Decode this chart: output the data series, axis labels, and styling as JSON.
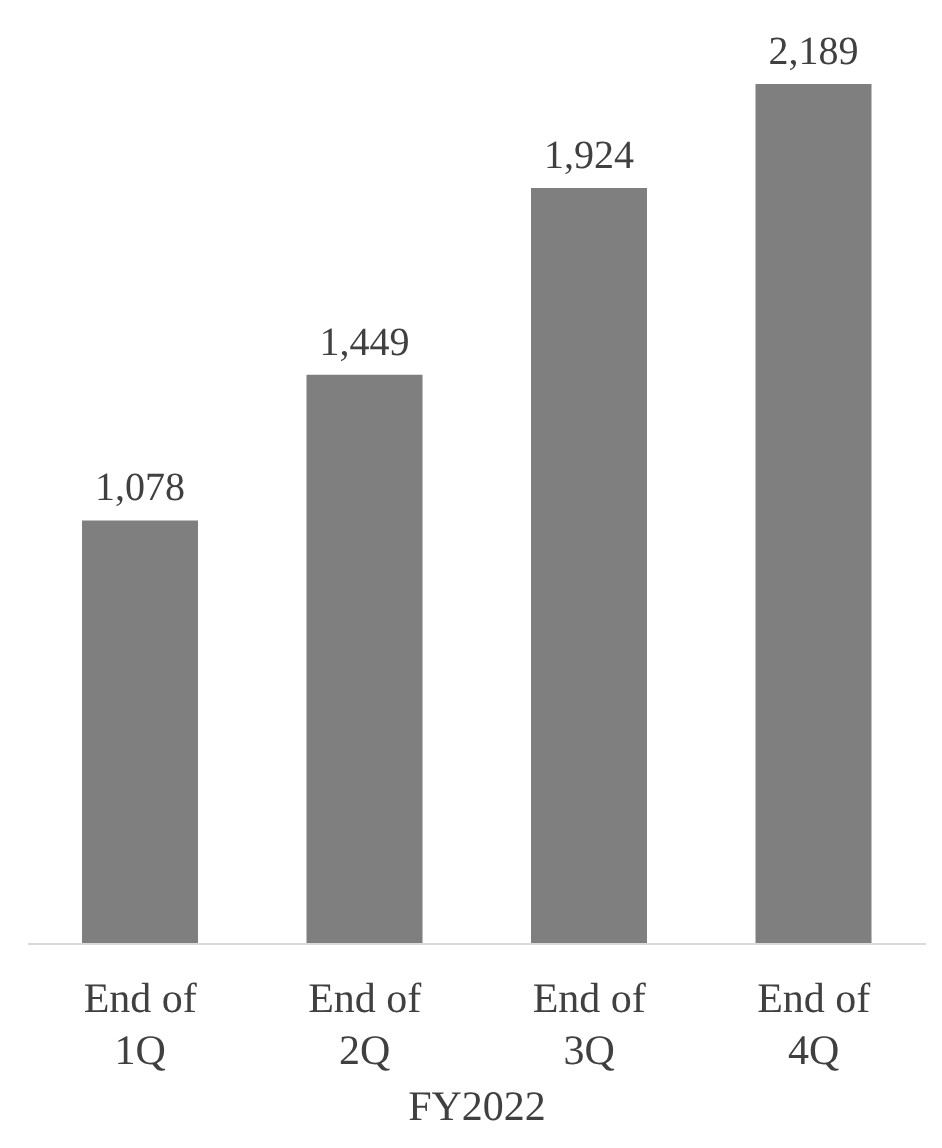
{
  "chart_data": {
    "type": "bar",
    "categories": [
      "End of 1Q",
      "End of 2Q",
      "End of 3Q",
      "End of 4Q"
    ],
    "values": [
      1078,
      1449,
      1924,
      2189
    ],
    "value_labels": [
      "1,078",
      "1,449",
      "1,924",
      "2,189"
    ],
    "color": "#7f7f7f",
    "xlabel": "FY2022"
  }
}
